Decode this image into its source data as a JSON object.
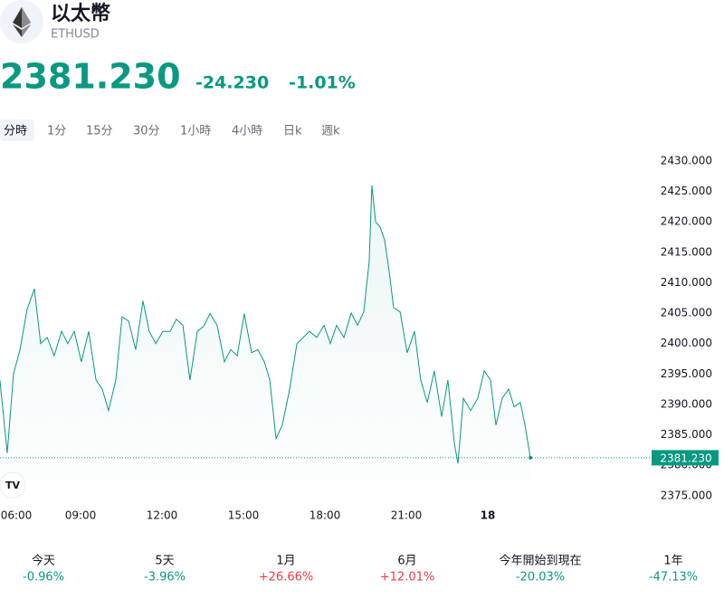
{
  "header": {
    "name": "以太幣",
    "symbol": "ETHUSD",
    "price": "2381.230",
    "change": "-24.230",
    "change_percent": "-1.01%"
  },
  "tabs": [
    "分時",
    "1分",
    "15分",
    "30分",
    "1小時",
    "4小時",
    "日k",
    "週k"
  ],
  "performance": [
    {
      "label": "今天",
      "value": "-0.96%"
    },
    {
      "label": "5天",
      "value": "-3.96%"
    },
    {
      "label": "1月",
      "value": "+26.66%"
    },
    {
      "label": "6月",
      "value": "+12.01%"
    },
    {
      "label": "今年開始到現在",
      "value": "-20.03%"
    },
    {
      "label": "1年",
      "value": "-47.13%"
    }
  ],
  "chart_data": {
    "type": "area",
    "color": "#089981",
    "x": [
      6.03,
      6.3,
      6.53,
      6.77,
      7.03,
      7.3,
      7.53,
      7.77,
      8.03,
      8.3,
      8.53,
      8.77,
      9.03,
      9.3,
      9.57,
      9.8,
      10.03,
      10.3,
      10.53,
      10.77,
      11.03,
      11.3,
      11.53,
      11.77,
      12.03,
      12.3,
      12.53,
      12.77,
      13.03,
      13.3,
      13.53,
      13.77,
      14.03,
      14.3,
      14.53,
      14.77,
      15.03,
      15.3,
      15.53,
      15.77,
      15.97,
      16.2,
      16.43,
      16.7,
      16.97,
      17.2,
      17.43,
      17.7,
      17.97,
      18.2,
      18.43,
      18.7,
      18.97,
      19.2,
      19.43,
      19.63,
      19.73,
      19.87,
      20.03,
      20.2,
      20.37,
      20.53,
      20.77,
      21.03,
      21.3,
      21.53,
      21.77,
      22.03,
      22.3,
      22.53,
      22.77,
      22.9,
      23.1,
      23.37,
      23.63,
      23.87,
      24.1,
      24.3,
      24.53,
      24.77,
      24.97,
      25.2,
      25.37,
      25.57
    ],
    "values": [
      2394,
      2382,
      2395,
      2399,
      2405.6,
      2409,
      2400,
      2401,
      2398,
      2402,
      2400,
      2402,
      2397,
      2402,
      2394,
      2392.5,
      2389,
      2394,
      2404.4,
      2403.7,
      2399,
      2407,
      2402,
      2400,
      2402,
      2402,
      2404,
      2403,
      2394,
      2402,
      2402.8,
      2404.9,
      2403,
      2397,
      2399,
      2398,
      2404.9,
      2398.5,
      2399,
      2397,
      2394,
      2384.4,
      2386.6,
      2392.5,
      2400,
      2401,
      2402,
      2401,
      2403,
      2400,
      2403,
      2401,
      2405,
      2403,
      2405.2,
      2413.4,
      2426,
      2420,
      2419.2,
      2417,
      2411.8,
      2405.9,
      2405.2,
      2398.5,
      2402,
      2394,
      2390.3,
      2395.5,
      2388,
      2394,
      2383.6,
      2380.3,
      2391,
      2389,
      2391,
      2395.5,
      2394,
      2386.6,
      2391,
      2392.5,
      2389.6,
      2390.3,
      2386.6,
      2381.23
    ],
    "xlim": [
      6,
      30
    ],
    "xticks": [
      {
        "value": 6,
        "label": "06:00"
      },
      {
        "value": 9,
        "label": "09:00"
      },
      {
        "value": 12,
        "label": "12:00"
      },
      {
        "value": 15,
        "label": "15:00"
      },
      {
        "value": 18,
        "label": "18:00"
      },
      {
        "value": 21,
        "label": "21:00"
      },
      {
        "value": 24,
        "label": "18"
      }
    ],
    "ylim": [
      2372,
      2434
    ],
    "yticks": [
      {
        "value": 2375,
        "label": "2375.000"
      },
      {
        "value": 2380,
        "label": "2380.000"
      },
      {
        "value": 2385,
        "label": "2385.000"
      },
      {
        "value": 2390,
        "label": "2390.000"
      },
      {
        "value": 2395,
        "label": "2395.000"
      },
      {
        "value": 2400,
        "label": "2400.000"
      },
      {
        "value": 2405,
        "label": "2405.000"
      },
      {
        "value": 2410,
        "label": "2410.000"
      },
      {
        "value": 2415,
        "label": "2415.000"
      },
      {
        "value": 2420,
        "label": "2420.000"
      },
      {
        "value": 2425,
        "label": "2425.000"
      },
      {
        "value": 2430,
        "label": "2430.000"
      }
    ],
    "price_line": {
      "value": 2381.23,
      "label": "2381.230"
    }
  }
}
